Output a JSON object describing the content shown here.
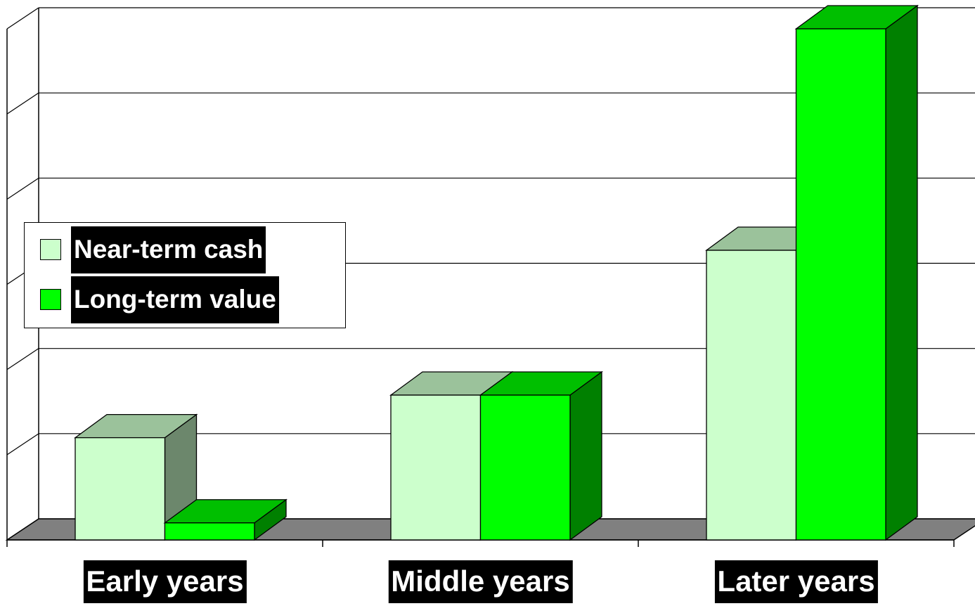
{
  "chart_data": {
    "type": "bar3d",
    "categories": [
      "Early years",
      "Middle years",
      "Later years"
    ],
    "series": [
      {
        "name": "Near-term cash",
        "color": "#ccffcc",
        "values": [
          1.2,
          1.7,
          3.4
        ]
      },
      {
        "name": "Long-term value",
        "color": "#00ff00",
        "values": [
          0.2,
          1.7,
          6
        ]
      }
    ],
    "ylim": [
      0,
      6
    ],
    "yticks": [
      0,
      1,
      2,
      3,
      4,
      5,
      6
    ],
    "grid": true,
    "legend": "left"
  }
}
